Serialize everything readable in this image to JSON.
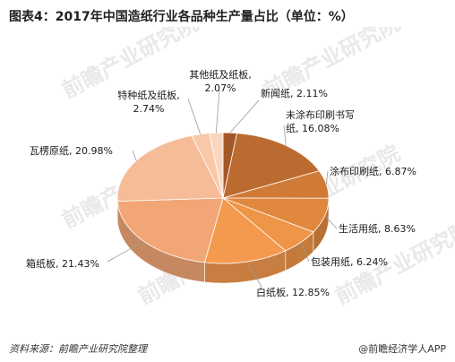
{
  "title": "图表4：2017年中国造纸行业各品种生产量占比（单位：%）",
  "source": "资料来源：前瞻产业研究院整理",
  "brand": "@前瞻经济学人APP",
  "watermark_text": "前瞻产业研究院",
  "chart_data": {
    "type": "pie",
    "title": "图表4：2017年中国造纸行业各品种生产量占比（单位：%）",
    "slices": [
      {
        "name": "新闻纸",
        "value": 2.11,
        "display": "新闻纸, 2.11%",
        "color": "#a45726"
      },
      {
        "name": "未涂布印刷书写纸",
        "value": 16.08,
        "display": "未涂布印刷书写纸, 16.08%",
        "color": "#bc6b30"
      },
      {
        "name": "涂布印刷纸",
        "value": 6.87,
        "display": "涂布印刷纸, 6.87%",
        "color": "#cf7a36"
      },
      {
        "name": "生活用纸",
        "value": 8.63,
        "display": "生活用纸, 8.63%",
        "color": "#e0893e"
      },
      {
        "name": "包装用纸",
        "value": 6.24,
        "display": "包装用纸, 6.24%",
        "color": "#ee9547"
      },
      {
        "name": "白纸板",
        "value": 12.85,
        "display": "白纸板, 12.85%",
        "color": "#f49a4e"
      },
      {
        "name": "箱纸板",
        "value": 21.43,
        "display": "箱纸板, 21.43%",
        "color": "#f2a676"
      },
      {
        "name": "瓦楞原纸",
        "value": 20.98,
        "display": "瓦楞原纸, 20.98%",
        "color": "#f6bc97"
      },
      {
        "name": "特种纸及纸板",
        "value": 2.74,
        "display": "特种纸及纸板, 2.74%",
        "color": "#f8c8a8"
      },
      {
        "name": "其他纸及纸板",
        "value": 2.07,
        "display": "其他纸及纸板, 2.07%",
        "color": "#fad6bf"
      }
    ]
  }
}
